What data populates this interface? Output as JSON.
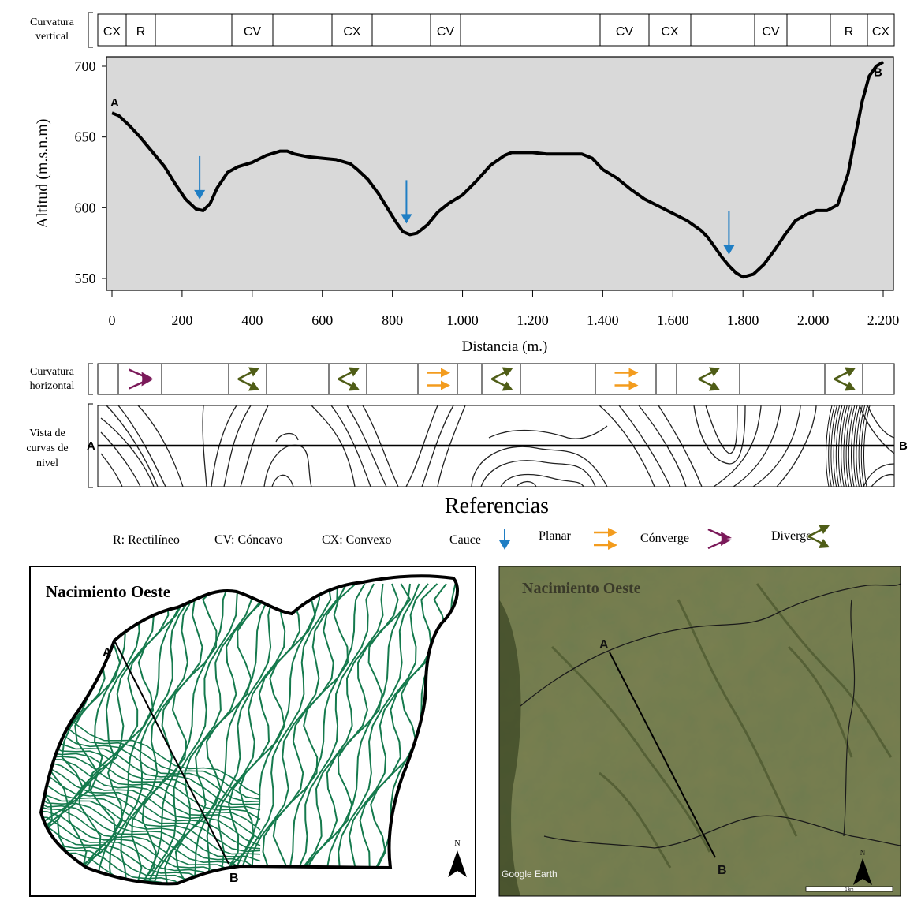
{
  "vertical_strip": {
    "label_line1": "Curvatura",
    "label_line2": "vertical",
    "cells": [
      "CX",
      "R",
      "",
      "CV",
      "",
      "CX",
      "",
      "CV",
      "",
      "CV",
      "CX",
      "",
      "CV",
      "",
      "R",
      "CX"
    ]
  },
  "horizontal_strip": {
    "label_line1": "Curvatura",
    "label_line2": "horizontal",
    "cells": [
      "",
      "converge",
      "",
      "diverge",
      "",
      "diverge",
      "",
      "planar",
      "",
      "diverge",
      "",
      "planar",
      "",
      "diverge",
      "",
      "diverge",
      ""
    ]
  },
  "contour_strip": {
    "label_line1": "Vista de",
    "label_line2": "curvas de",
    "label_line3": "nivel",
    "point_a": "A",
    "point_b": "B"
  },
  "chart_data": {
    "type": "line",
    "title": "",
    "xlabel": "Distancia (m.)",
    "ylabel": "Altitud (m.s.n.m)",
    "xlim": [
      0,
      2220
    ],
    "ylim": [
      545,
      705
    ],
    "x_ticks": [
      0,
      200,
      400,
      600,
      800,
      1000,
      1200,
      1400,
      1600,
      1800,
      2000,
      2200
    ],
    "x_tick_labels": [
      "0",
      "200",
      "400",
      "600",
      "800",
      "1.000",
      "1.200",
      "1.400",
      "1.600",
      "1.800",
      "2.000",
      "2.200"
    ],
    "y_ticks": [
      550,
      600,
      650,
      700
    ],
    "y_tick_labels": [
      "550",
      "600",
      "650",
      "700"
    ],
    "grid": false,
    "point_labels": {
      "start": "A",
      "end": "B"
    },
    "series": [
      {
        "x": [
          0,
          20,
          50,
          80,
          110,
          150,
          180,
          210,
          240,
          260,
          280,
          300,
          330,
          360,
          400,
          440,
          480,
          500,
          520,
          560,
          600,
          640,
          680,
          700,
          730,
          760,
          790,
          810,
          830,
          850,
          870,
          900,
          930,
          960,
          1000,
          1040,
          1080,
          1120,
          1140,
          1170,
          1200,
          1240,
          1280,
          1310,
          1340,
          1370,
          1400,
          1440,
          1480,
          1520,
          1560,
          1600,
          1640,
          1680,
          1700,
          1720,
          1740,
          1760,
          1780,
          1800,
          1830,
          1860,
          1890,
          1920,
          1950,
          1980,
          2010,
          2040,
          2070,
          2100,
          2120,
          2140,
          2160,
          2180,
          2200
        ],
        "y": [
          667,
          665,
          658,
          650,
          641,
          629,
          617,
          606,
          599,
          598,
          603,
          614,
          625,
          629,
          632,
          637,
          640,
          640,
          638,
          636,
          635,
          634,
          631,
          627,
          620,
          610,
          598,
          590,
          583,
          581,
          582,
          588,
          597,
          603,
          609,
          619,
          630,
          637,
          639,
          639,
          639,
          638,
          638,
          638,
          638,
          635,
          627,
          621,
          613,
          606,
          601,
          596,
          591,
          584,
          579,
          572,
          565,
          559,
          554,
          551,
          553,
          560,
          570,
          581,
          591,
          595,
          598,
          598,
          602,
          624,
          650,
          675,
          693,
          700,
          703
        ]
      }
    ],
    "arrows_x": [
      250,
      840,
      1760
    ]
  },
  "references": {
    "title": "Referencias",
    "r": "R: Rectilíneo",
    "cv": "CV: Cóncavo",
    "cx": "CX: Convexo",
    "cauce": "Cauce",
    "planar": "Planar",
    "converge": "Cónverge",
    "diverge": "Diverge"
  },
  "map_left": {
    "title": "Nacimiento Oeste",
    "point_a": "A",
    "point_b": "B",
    "north": "N"
  },
  "map_right": {
    "title": "Nacimiento Oeste",
    "point_a": "A",
    "point_b": "B",
    "north": "N",
    "attribution": "Google Earth",
    "scale_label": "1 km"
  },
  "colors": {
    "plot_bg": "#d9d9d9",
    "cauce_blue": "#1f7ec4",
    "planar_orange": "#f39c1e",
    "converge_purple": "#7b1a5a",
    "diverge_olive": "#4f5d17",
    "contour_green": "#157a4d"
  }
}
